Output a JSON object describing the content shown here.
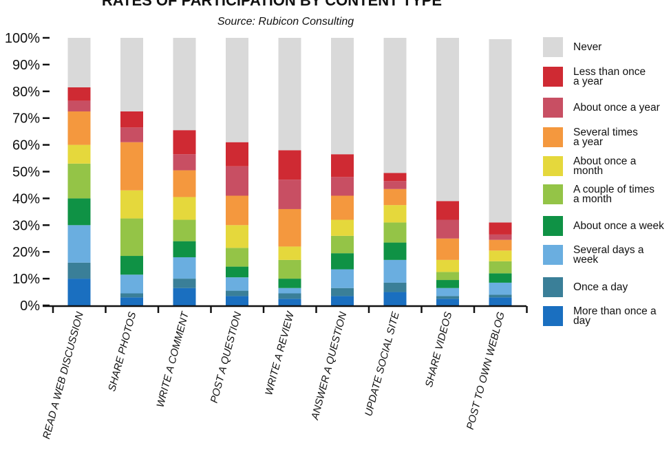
{
  "chart_data": {
    "type": "bar",
    "stacked": true,
    "title": "RATES OF PARTICIPATION BY CONTENT TYPE",
    "subtitle": "Source: Rubicon Consulting",
    "xlabel": "",
    "ylabel": "",
    "ylim": [
      0,
      100
    ],
    "y_ticks": [
      "0%",
      "10%",
      "20%",
      "30%",
      "40%",
      "50%",
      "60%",
      "70%",
      "80%",
      "90%",
      "100%"
    ],
    "grid": false,
    "legend_position": "right",
    "categories": [
      "READ A WEB DISCUSSION",
      "SHARE PHOTOS",
      "WRITE A COMMENT",
      "POST A QUESTION",
      "WRITE A REVIEW",
      "ANSWER A QUESTION",
      "UPDATE SOCIAL SITE",
      "SHARE VIDEOS",
      "POST TO OWN WEBLOG"
    ],
    "series": [
      {
        "name": "More than once a day",
        "color": "#1a6fc0",
        "values": [
          10,
          3,
          6.5,
          3.5,
          2.5,
          3.5,
          5,
          2.5,
          3
        ]
      },
      {
        "name": "Once a day",
        "color": "#3a7f98",
        "values": [
          6,
          1.5,
          3.5,
          2,
          2,
          3,
          3.5,
          1,
          1
        ]
      },
      {
        "name": "Several days a week",
        "color": "#6aaee0",
        "values": [
          14,
          7,
          8,
          5,
          2,
          7,
          8.5,
          3,
          4.5
        ]
      },
      {
        "name": "About once a week",
        "color": "#0f9245",
        "values": [
          10,
          7,
          6,
          4,
          3.5,
          6,
          6.5,
          3,
          3.5
        ]
      },
      {
        "name": "A couple of times a month",
        "color": "#94c447",
        "values": [
          13,
          14,
          8,
          7,
          7,
          6.5,
          7.5,
          3,
          4.5
        ]
      },
      {
        "name": "About once a month",
        "color": "#e5d83c",
        "values": [
          7,
          10.5,
          8.5,
          8.5,
          5,
          6,
          6.5,
          4.5,
          4
        ]
      },
      {
        "name": "Several times a year",
        "color": "#f4983e",
        "values": [
          12.5,
          18,
          10,
          11,
          14,
          9,
          6,
          8,
          4
        ]
      },
      {
        "name": "About once a year",
        "color": "#c84f63",
        "values": [
          4,
          5.5,
          6,
          11,
          11,
          7,
          3,
          7,
          2
        ]
      },
      {
        "name": "Less than once a year",
        "color": "#cf2a33",
        "values": [
          5,
          6,
          9,
          9,
          11,
          8.5,
          3,
          7,
          4.5
        ]
      },
      {
        "name": "Never",
        "color": "#d9d9d9",
        "values": [
          18.5,
          27.5,
          34.5,
          39,
          42,
          43.5,
          50.5,
          61,
          68.5
        ]
      }
    ],
    "legend_order": [
      "Never",
      "Less than once a year",
      "About once a year",
      "Several times a year",
      "About once a month",
      "A couple of times a month",
      "About once a week",
      "Several days a week",
      "Once a day",
      "More than once a day"
    ],
    "legend_lines": [
      [
        "Never"
      ],
      [
        "Less than once",
        "a year"
      ],
      [
        "About once a year"
      ],
      [
        "Several times",
        "a year"
      ],
      [
        "About once a",
        "month"
      ],
      [
        "A couple of times",
        "a month"
      ],
      [
        "About once a week"
      ],
      [
        "Several days a",
        "week"
      ],
      [
        "Once a day"
      ],
      [
        "More than once a",
        "day"
      ]
    ]
  }
}
